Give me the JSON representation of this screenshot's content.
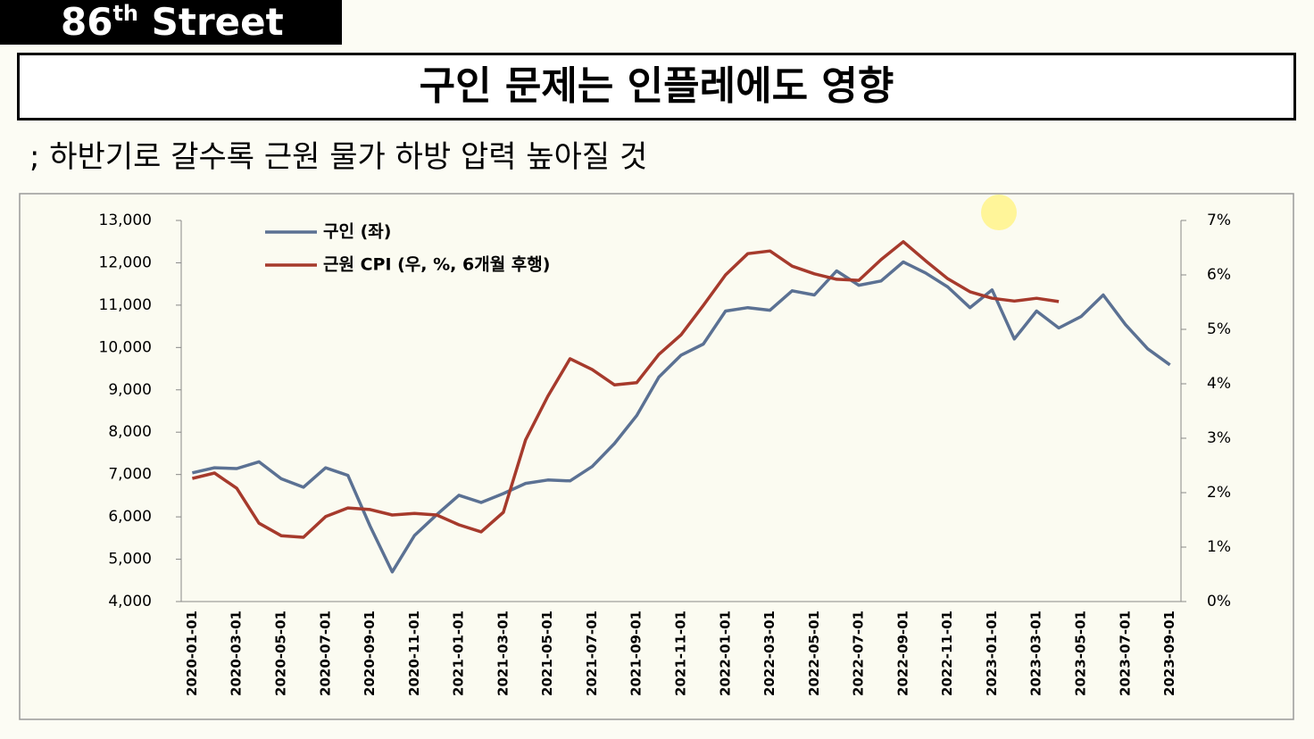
{
  "header": {
    "brand_number": "86",
    "brand_suffix": "th",
    "brand_name": "Street"
  },
  "title": "구인 문제는 인플레에도 영향",
  "subtitle": "; 하반기로 갈수록 근원 물가 하방 압력 높아질 것",
  "chart_data": {
    "type": "line",
    "categories": [
      "2020-01-01",
      null,
      "2020-03-01",
      null,
      "2020-05-01",
      null,
      "2020-07-01",
      null,
      "2020-09-01",
      null,
      "2020-11-01",
      null,
      "2021-01-01",
      null,
      "2021-03-01",
      null,
      "2021-05-01",
      null,
      "2021-07-01",
      null,
      "2021-09-01",
      null,
      "2021-11-01",
      null,
      "2022-01-01",
      null,
      "2022-03-01",
      null,
      "2022-05-01",
      null,
      "2022-07-01",
      null,
      "2022-09-01",
      null,
      "2022-11-01",
      null,
      "2023-01-01",
      null,
      "2023-03-01",
      null,
      "2023-05-01",
      null,
      "2023-07-01",
      null,
      "2023-09-01"
    ],
    "series": [
      {
        "name": "구인 (좌)",
        "color": "#5b7193",
        "values": [
          7040,
          7160,
          7140,
          7300,
          6900,
          6700,
          7160,
          6980,
          5780,
          4700,
          5560,
          6050,
          6510,
          6340,
          6550,
          6790,
          6870,
          6850,
          7190,
          7730,
          8390,
          9300,
          9820,
          10080,
          10860,
          10940,
          10880,
          11340,
          11240,
          11810,
          11470,
          11570,
          12020,
          11760,
          11430,
          10940,
          11360,
          10200,
          10860,
          10460,
          10730,
          11240,
          10540,
          9970,
          9590
        ]
      },
      {
        "name": "근원 CPI (우, %, 6개월 후행)",
        "color": "#a63a2c",
        "axis": "y2",
        "values": [
          2.26,
          2.36,
          2.08,
          1.44,
          1.21,
          1.18,
          1.56,
          1.72,
          1.69,
          1.59,
          1.62,
          1.59,
          1.41,
          1.28,
          1.64,
          2.97,
          3.77,
          4.46,
          4.26,
          3.98,
          4.02,
          4.54,
          4.9,
          5.44,
          6.0,
          6.39,
          6.44,
          6.16,
          6.02,
          5.92,
          5.9,
          6.28,
          6.61,
          6.26,
          5.93,
          5.69,
          5.57,
          5.52,
          5.57,
          5.51,
          null,
          null,
          null,
          null,
          null
        ]
      }
    ],
    "ylim": [
      4000,
      13000
    ],
    "yticks": [
      {
        "value": 4000,
        "label": "4,000"
      },
      {
        "value": 5000,
        "label": "5,000"
      },
      {
        "value": 6000,
        "label": "6,000"
      },
      {
        "value": 7000,
        "label": "7,000"
      },
      {
        "value": 8000,
        "label": "8,000"
      },
      {
        "value": 9000,
        "label": "9,000"
      },
      {
        "value": 10000,
        "label": "10,000"
      },
      {
        "value": 11000,
        "label": "11,000"
      },
      {
        "value": 12000,
        "label": "12,000"
      },
      {
        "value": 13000,
        "label": "13,000"
      }
    ],
    "y2lim": [
      0,
      7
    ],
    "y2ticks": [
      {
        "value": 0,
        "label": "0%"
      },
      {
        "value": 1,
        "label": "1%"
      },
      {
        "value": 2,
        "label": "2%"
      },
      {
        "value": 3,
        "label": "3%"
      },
      {
        "value": 4,
        "label": "4%"
      },
      {
        "value": 5,
        "label": "5%"
      },
      {
        "value": 6,
        "label": "6%"
      },
      {
        "value": 7,
        "label": "7%"
      }
    ],
    "legend": "top-left",
    "grid": false
  }
}
